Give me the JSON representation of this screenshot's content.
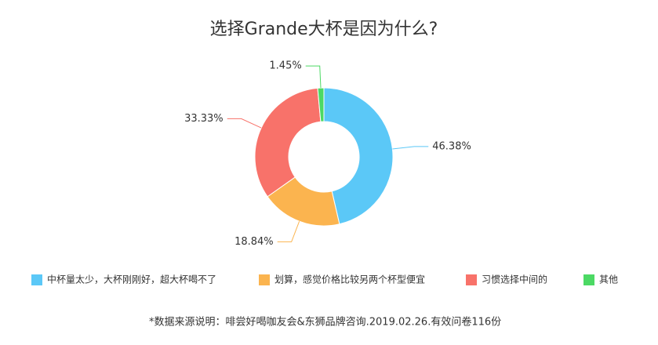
{
  "chart_data": {
    "type": "donut",
    "title": "选择Grande大杯是因为什么?",
    "categories": [
      "中杯量太少，大杯刚刚好，超大杯喝不了",
      "划算，感觉价格比较另两个杯型便宜",
      "习惯选择中间的",
      "其他"
    ],
    "values": [
      46.38,
      18.84,
      33.33,
      1.45
    ],
    "value_labels": [
      "46.38%",
      "18.84%",
      "33.33%",
      "1.45%"
    ],
    "colors": [
      "#5bc8f7",
      "#fbb44f",
      "#f8726a",
      "#4cd964"
    ],
    "source": "*数据来源说明：啡尝好喝咖友会&东狮品牌咨询.2019.02.26.有效问卷116份"
  }
}
